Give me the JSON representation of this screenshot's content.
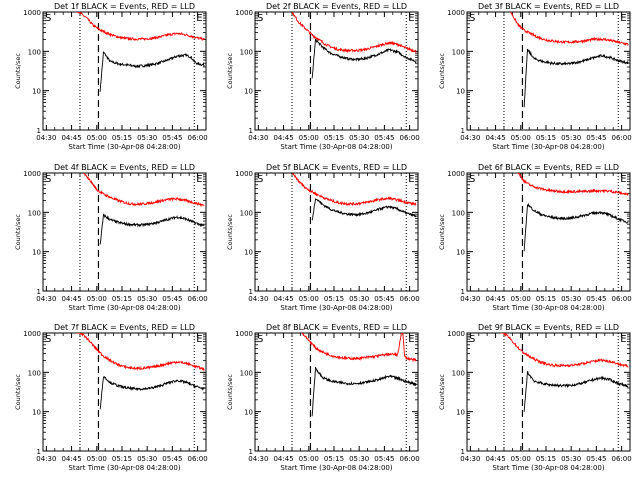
{
  "common": {
    "xlabel": "Start Time (30-Apr-08 04:28:00)",
    "ylabel": "Counts/sec",
    "x_tick_labels": [
      "04:30",
      "04:45",
      "05:00",
      "05:15",
      "05:30",
      "05:45",
      "06:00"
    ],
    "y_tick_labels": [
      "1",
      "10",
      "100",
      "1000"
    ],
    "marker_s": "S",
    "marker_e": "E",
    "colors": {
      "events": "#000000",
      "lld": "#ff0000",
      "axes": "#000000"
    }
  },
  "chart_data": [
    {
      "type": "line",
      "title": "Det 1f BLACK = Events, RED = LLD",
      "xlabel": "Start Time (30-Apr-08 04:28:00)",
      "ylabel": "Counts/sec",
      "x_ticks": [
        "04:30",
        "04:45",
        "05:00",
        "05:15",
        "05:30",
        "05:45",
        "06:00"
      ],
      "x_range_minutes": [
        0,
        97
      ],
      "y_scale": "log",
      "ylim": [
        1,
        1000
      ],
      "dotted_lines_min": [
        22,
        90
      ],
      "dashed_line_min": 33,
      "s_marker_min": 0,
      "e_marker_min": 90,
      "series": [
        {
          "name": "Events",
          "color": "#000000",
          "x": [
            34,
            36,
            40,
            45,
            50,
            55,
            60,
            65,
            70,
            75,
            80,
            85,
            88,
            90,
            92,
            96
          ],
          "y": [
            10,
            95,
            55,
            48,
            45,
            42,
            43,
            46,
            52,
            62,
            76,
            80,
            72,
            55,
            48,
            45
          ]
        },
        {
          "name": "LLD",
          "color": "#ff0000",
          "x": [
            20,
            26,
            30,
            34,
            38,
            42,
            46,
            50,
            55,
            60,
            65,
            70,
            75,
            80,
            85,
            90,
            96
          ],
          "y": [
            1100,
            700,
            450,
            350,
            290,
            250,
            225,
            210,
            205,
            205,
            215,
            235,
            265,
            285,
            265,
            230,
            200
          ]
        }
      ]
    },
    {
      "type": "line",
      "title": "Det 2f BLACK = Events, RED = LLD",
      "xlabel": "Start Time (30-Apr-08 04:28:00)",
      "ylabel": "Counts/sec",
      "x_ticks": [
        "04:30",
        "04:45",
        "05:00",
        "05:15",
        "05:30",
        "05:45",
        "06:00"
      ],
      "x_range_minutes": [
        0,
        97
      ],
      "y_scale": "log",
      "ylim": [
        1,
        1000
      ],
      "dotted_lines_min": [
        22,
        90
      ],
      "dashed_line_min": 33,
      "s_marker_min": 0,
      "e_marker_min": 90,
      "series": [
        {
          "name": "Events",
          "color": "#000000",
          "x": [
            34,
            36,
            40,
            45,
            50,
            55,
            60,
            65,
            70,
            75,
            80,
            85,
            90,
            96
          ],
          "y": [
            20,
            200,
            130,
            90,
            75,
            65,
            62,
            65,
            75,
            90,
            110,
            95,
            70,
            55
          ]
        },
        {
          "name": "LLD",
          "color": "#ff0000",
          "x": [
            22,
            26,
            30,
            34,
            38,
            42,
            46,
            50,
            55,
            60,
            65,
            70,
            75,
            80,
            85,
            90,
            96
          ],
          "y": [
            1000,
            550,
            380,
            260,
            200,
            150,
            125,
            110,
            105,
            105,
            110,
            125,
            145,
            165,
            150,
            120,
            100
          ]
        }
      ]
    },
    {
      "type": "line",
      "title": "Det 3f BLACK = Events, RED = LLD",
      "xlabel": "Start Time (30-Apr-08 04:28:00)",
      "ylabel": "Counts/sec",
      "x_ticks": [
        "04:30",
        "04:45",
        "05:00",
        "05:15",
        "05:30",
        "05:45",
        "06:00"
      ],
      "x_range_minutes": [
        0,
        97
      ],
      "y_scale": "log",
      "ylim": [
        1,
        1000
      ],
      "dotted_lines_min": [
        22,
        90
      ],
      "dashed_line_min": 33,
      "s_marker_min": 0,
      "e_marker_min": 90,
      "series": [
        {
          "name": "Events",
          "color": "#000000",
          "x": [
            34,
            36,
            40,
            45,
            50,
            55,
            60,
            65,
            70,
            75,
            80,
            85,
            90,
            96
          ],
          "y": [
            4,
            110,
            65,
            55,
            50,
            48,
            48,
            52,
            58,
            68,
            78,
            70,
            58,
            50
          ]
        },
        {
          "name": "LLD",
          "color": "#ff0000",
          "x": [
            26,
            30,
            34,
            38,
            42,
            46,
            50,
            55,
            60,
            65,
            70,
            75,
            80,
            85,
            90,
            96
          ],
          "y": [
            1000,
            500,
            340,
            280,
            230,
            200,
            185,
            175,
            170,
            175,
            185,
            200,
            205,
            190,
            170,
            150
          ]
        }
      ]
    },
    {
      "type": "line",
      "title": "Det 4f BLACK = Events, RED = LLD",
      "xlabel": "Start Time (30-Apr-08 04:28:00)",
      "ylabel": "Counts/sec",
      "x_ticks": [
        "04:30",
        "04:45",
        "05:00",
        "05:15",
        "05:30",
        "05:45",
        "06:00"
      ],
      "x_range_minutes": [
        0,
        97
      ],
      "y_scale": "log",
      "ylim": [
        1,
        1000
      ],
      "dotted_lines_min": [
        22,
        90
      ],
      "dashed_line_min": 33,
      "s_marker_min": 0,
      "e_marker_min": 90,
      "series": [
        {
          "name": "Events",
          "color": "#000000",
          "x": [
            34,
            36,
            40,
            45,
            50,
            55,
            60,
            65,
            70,
            75,
            80,
            85,
            90,
            96
          ],
          "y": [
            15,
            85,
            65,
            55,
            50,
            48,
            48,
            52,
            58,
            68,
            76,
            68,
            55,
            45
          ]
        },
        {
          "name": "LLD",
          "color": "#ff0000",
          "x": [
            24,
            28,
            32,
            36,
            40,
            44,
            48,
            52,
            56,
            60,
            65,
            70,
            75,
            80,
            85,
            90,
            96
          ],
          "y": [
            1000,
            650,
            380,
            290,
            240,
            205,
            180,
            165,
            160,
            165,
            175,
            195,
            215,
            220,
            200,
            175,
            150
          ]
        }
      ]
    },
    {
      "type": "line",
      "title": "Det 5f BLACK = Events, RED = LLD",
      "xlabel": "Start Time (30-Apr-08 04:28:00)",
      "ylabel": "Counts/sec",
      "x_ticks": [
        "04:30",
        "04:45",
        "05:00",
        "05:15",
        "05:30",
        "05:45",
        "06:00"
      ],
      "x_range_minutes": [
        0,
        97
      ],
      "y_scale": "log",
      "ylim": [
        1,
        1000
      ],
      "dotted_lines_min": [
        22,
        90
      ],
      "dashed_line_min": 33,
      "s_marker_min": 0,
      "e_marker_min": 90,
      "series": [
        {
          "name": "Events",
          "color": "#000000",
          "x": [
            34,
            36,
            40,
            45,
            50,
            55,
            60,
            65,
            70,
            75,
            80,
            85,
            90,
            96
          ],
          "y": [
            60,
            230,
            160,
            120,
            100,
            90,
            88,
            92,
            105,
            125,
            140,
            120,
            95,
            80
          ]
        },
        {
          "name": "LLD",
          "color": "#ff0000",
          "x": [
            22,
            26,
            30,
            34,
            38,
            42,
            46,
            50,
            55,
            60,
            65,
            70,
            75,
            80,
            85,
            90,
            96
          ],
          "y": [
            1000,
            620,
            420,
            330,
            270,
            225,
            195,
            175,
            165,
            165,
            175,
            195,
            215,
            225,
            205,
            180,
            160
          ]
        }
      ]
    },
    {
      "type": "line",
      "title": "Det 6f BLACK = Events, RED = LLD",
      "xlabel": "Start Time (30-Apr-08 04:28:00)",
      "ylabel": "Counts/sec",
      "x_ticks": [
        "04:30",
        "04:45",
        "05:00",
        "05:15",
        "05:30",
        "05:45",
        "06:00"
      ],
      "x_range_minutes": [
        0,
        97
      ],
      "y_scale": "log",
      "ylim": [
        1,
        1000
      ],
      "dotted_lines_min": [
        22,
        90
      ],
      "dashed_line_min": 33,
      "s_marker_min": 0,
      "e_marker_min": 90,
      "series": [
        {
          "name": "Events",
          "color": "#000000",
          "x": [
            34,
            36,
            40,
            45,
            50,
            55,
            60,
            65,
            70,
            75,
            80,
            85,
            90,
            96
          ],
          "y": [
            10,
            160,
            110,
            85,
            75,
            70,
            70,
            75,
            85,
            95,
            100,
            85,
            68,
            55
          ]
        },
        {
          "name": "LLD",
          "color": "#ff0000",
          "x": [
            30,
            34,
            38,
            42,
            46,
            50,
            55,
            60,
            65,
            70,
            75,
            80,
            85,
            90,
            96
          ],
          "y": [
            1100,
            620,
            480,
            420,
            380,
            355,
            340,
            335,
            335,
            340,
            350,
            355,
            345,
            320,
            280
          ]
        }
      ]
    },
    {
      "type": "line",
      "title": "Det 7f BLACK = Events, RED = LLD",
      "xlabel": "Start Time (30-Apr-08 04:28:00)",
      "ylabel": "Counts/sec",
      "x_ticks": [
        "04:30",
        "04:45",
        "05:00",
        "05:15",
        "05:30",
        "05:45",
        "06:00"
      ],
      "x_range_minutes": [
        0,
        97
      ],
      "y_scale": "log",
      "ylim": [
        1,
        1000
      ],
      "dotted_lines_min": [
        22,
        90
      ],
      "dashed_line_min": 33,
      "s_marker_min": 0,
      "e_marker_min": 90,
      "series": [
        {
          "name": "Events",
          "color": "#000000",
          "x": [
            34,
            36,
            40,
            45,
            50,
            55,
            60,
            65,
            70,
            75,
            80,
            85,
            90,
            96
          ],
          "y": [
            12,
            80,
            55,
            45,
            40,
            38,
            38,
            40,
            46,
            55,
            62,
            56,
            45,
            38
          ]
        },
        {
          "name": "LLD",
          "color": "#ff0000",
          "x": [
            20,
            24,
            28,
            32,
            36,
            40,
            44,
            48,
            52,
            56,
            60,
            65,
            70,
            75,
            80,
            85,
            90,
            96
          ],
          "y": [
            1100,
            900,
            600,
            380,
            260,
            200,
            160,
            140,
            130,
            125,
            128,
            135,
            150,
            170,
            185,
            170,
            145,
            120
          ]
        }
      ]
    },
    {
      "type": "line",
      "title": "Det 8f BLACK = Events, RED = LLD",
      "xlabel": "Start Time (30-Apr-08 04:28:00)",
      "ylabel": "Counts/sec",
      "x_ticks": [
        "04:30",
        "04:45",
        "05:00",
        "05:15",
        "05:30",
        "05:45",
        "06:00"
      ],
      "x_range_minutes": [
        0,
        97
      ],
      "y_scale": "log",
      "ylim": [
        1,
        1000
      ],
      "dotted_lines_min": [
        22,
        90
      ],
      "dashed_line_min": 33,
      "s_marker_min": 0,
      "e_marker_min": 90,
      "series": [
        {
          "name": "Events",
          "color": "#000000",
          "x": [
            34,
            36,
            40,
            45,
            50,
            55,
            60,
            65,
            70,
            75,
            80,
            85,
            90,
            96
          ],
          "y": [
            8,
            130,
            75,
            60,
            55,
            52,
            52,
            55,
            60,
            68,
            80,
            70,
            58,
            50
          ]
        },
        {
          "name": "LLD",
          "color": "#ff0000",
          "x": [
            28,
            32,
            36,
            40,
            44,
            48,
            52,
            56,
            60,
            65,
            70,
            75,
            80,
            85,
            87,
            88,
            89,
            90,
            96
          ],
          "y": [
            1000,
            650,
            420,
            330,
            280,
            250,
            235,
            225,
            225,
            235,
            250,
            270,
            290,
            280,
            1000,
            1000,
            260,
            230,
            200
          ]
        }
      ]
    },
    {
      "type": "line",
      "title": "Det 9f BLACK = Events, RED = LLD",
      "xlabel": "Start Time (30-Apr-08 04:28:00)",
      "ylabel": "Counts/sec",
      "x_ticks": [
        "04:30",
        "04:45",
        "05:00",
        "05:15",
        "05:30",
        "05:45",
        "06:00"
      ],
      "x_range_minutes": [
        0,
        97
      ],
      "y_scale": "log",
      "ylim": [
        1,
        1000
      ],
      "dotted_lines_min": [
        22,
        90
      ],
      "dashed_line_min": 33,
      "s_marker_min": 0,
      "e_marker_min": 90,
      "series": [
        {
          "name": "Events",
          "color": "#000000",
          "x": [
            34,
            36,
            40,
            45,
            50,
            55,
            60,
            65,
            70,
            75,
            80,
            85,
            90,
            96
          ],
          "y": [
            10,
            100,
            60,
            52,
            48,
            46,
            46,
            49,
            55,
            65,
            72,
            65,
            52,
            45
          ]
        },
        {
          "name": "LLD",
          "color": "#ff0000",
          "x": [
            20,
            24,
            28,
            32,
            36,
            40,
            44,
            48,
            52,
            56,
            60,
            65,
            70,
            75,
            80,
            85,
            90,
            96
          ],
          "y": [
            1100,
            850,
            550,
            360,
            270,
            215,
            180,
            160,
            150,
            148,
            150,
            155,
            170,
            190,
            205,
            190,
            165,
            140
          ]
        }
      ]
    }
  ]
}
